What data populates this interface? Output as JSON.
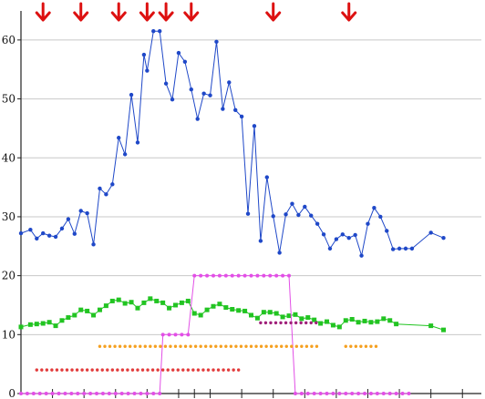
{
  "chart_data": {
    "type": "line",
    "title": "",
    "xlabel": "",
    "ylabel": "",
    "ylim": [
      0,
      64
    ],
    "xlim": [
      0,
      146
    ],
    "y_ticks": [
      0,
      10,
      20,
      30,
      40,
      50,
      60
    ],
    "x_tick_positions": [
      10,
      20,
      30,
      40,
      50,
      55,
      60,
      70,
      80,
      90,
      100,
      110,
      120,
      130,
      140
    ],
    "grid": "horizontal",
    "legend": "none",
    "arrows_x": [
      7,
      19,
      31,
      40,
      46,
      54,
      80,
      104
    ],
    "colors": {
      "blue": "#1f48c8",
      "green": "#22c422",
      "magenta": "#e24fe6",
      "orange": "#f5a020",
      "red": "#e23b3b",
      "purple": "#a0207a",
      "arrow": "#dd1111"
    },
    "series": [
      {
        "color": "blue",
        "style": "line-dot",
        "x": [
          0,
          3,
          5,
          7,
          9,
          11,
          13,
          15,
          17,
          19,
          21,
          23,
          25,
          27,
          29,
          31,
          33,
          35,
          37,
          39,
          40,
          42,
          44,
          46,
          48,
          50,
          52,
          54,
          56,
          58,
          60,
          62,
          64,
          66,
          68,
          70,
          72,
          74,
          76,
          78,
          80,
          82,
          84,
          86,
          88,
          90,
          92,
          94,
          96,
          98,
          100,
          102,
          104,
          106,
          108,
          110,
          112,
          114,
          116,
          118,
          120,
          122,
          124,
          130,
          134
        ],
        "y": [
          27.2,
          27.8,
          26.3,
          27.2,
          26.8,
          26.6,
          28.0,
          29.6,
          27.1,
          31.0,
          30.6,
          25.3,
          34.8,
          33.8,
          35.5,
          43.4,
          40.6,
          50.7,
          42.6,
          57.5,
          54.8,
          61.5,
          61.5,
          52.6,
          49.9,
          57.8,
          56.3,
          51.6,
          46.6,
          50.9,
          50.6,
          59.7,
          48.3,
          52.8,
          48.1,
          47.0,
          30.5,
          45.4,
          25.9,
          36.7,
          30.1,
          23.9,
          30.4,
          32.2,
          30.3,
          31.7,
          30.2,
          28.8,
          27.0,
          24.6,
          26.2,
          27.0,
          26.4,
          26.9,
          23.4,
          28.8,
          31.5,
          30.0,
          27.6,
          24.5,
          24.6,
          24.6,
          24.6,
          27.3,
          26.4
        ]
      },
      {
        "color": "green",
        "style": "line-square",
        "x": [
          0,
          3,
          5,
          7,
          9,
          11,
          13,
          15,
          17,
          19,
          21,
          23,
          25,
          27,
          29,
          31,
          33,
          35,
          37,
          39,
          41,
          43,
          45,
          47,
          49,
          51,
          53,
          55,
          57,
          59,
          61,
          63,
          65,
          67,
          69,
          71,
          73,
          75,
          77,
          79,
          81,
          83,
          85,
          87,
          89,
          91,
          93,
          95,
          97,
          99,
          101,
          103,
          105,
          107,
          109,
          111,
          113,
          115,
          117,
          119,
          130,
          134
        ],
        "y": [
          11.3,
          11.7,
          11.8,
          11.9,
          12.1,
          11.5,
          12.4,
          12.9,
          13.3,
          14.2,
          14.0,
          13.3,
          14.2,
          14.9,
          15.7,
          15.9,
          15.3,
          15.5,
          14.5,
          15.4,
          16.1,
          15.7,
          15.4,
          14.5,
          15.0,
          15.4,
          15.7,
          13.6,
          13.3,
          14.2,
          14.8,
          15.2,
          14.6,
          14.3,
          14.1,
          14.0,
          13.3,
          12.8,
          13.8,
          13.8,
          13.6,
          13.0,
          13.2,
          13.4,
          12.7,
          12.9,
          12.5,
          11.9,
          12.2,
          11.6,
          11.3,
          12.4,
          12.6,
          12.1,
          12.3,
          12.1,
          12.2,
          12.7,
          12.4,
          11.8,
          11.5,
          10.8
        ]
      },
      {
        "color": "magenta",
        "style": "line-dot",
        "x": [
          0,
          44,
          45,
          49,
          53,
          55,
          85,
          87,
          123
        ],
        "y": [
          0,
          0,
          10,
          10,
          10,
          20,
          20,
          0,
          0
        ],
        "dots": [
          0,
          2,
          4,
          6,
          8,
          10,
          12,
          14,
          16,
          18,
          20,
          22,
          24,
          26,
          28,
          30,
          32,
          34,
          36,
          38,
          40,
          42,
          44,
          45,
          47,
          49,
          51,
          53,
          55,
          57,
          59,
          61,
          63,
          65,
          67,
          69,
          71,
          73,
          75,
          77,
          79,
          81,
          83,
          85,
          87,
          89,
          91,
          93,
          95,
          97,
          99,
          101,
          103,
          105,
          107,
          109,
          111,
          113,
          115,
          117,
          119,
          121,
          123
        ]
      },
      {
        "color": "orange",
        "style": "dots",
        "y": 8,
        "segments": [
          [
            25,
            95
          ],
          [
            103,
            114
          ]
        ]
      },
      {
        "color": "red",
        "style": "dots",
        "y": 4,
        "segments": [
          [
            5,
            69
          ]
        ]
      },
      {
        "color": "purple",
        "style": "dots",
        "y": 12,
        "segments": [
          [
            76,
            95
          ]
        ]
      }
    ]
  }
}
